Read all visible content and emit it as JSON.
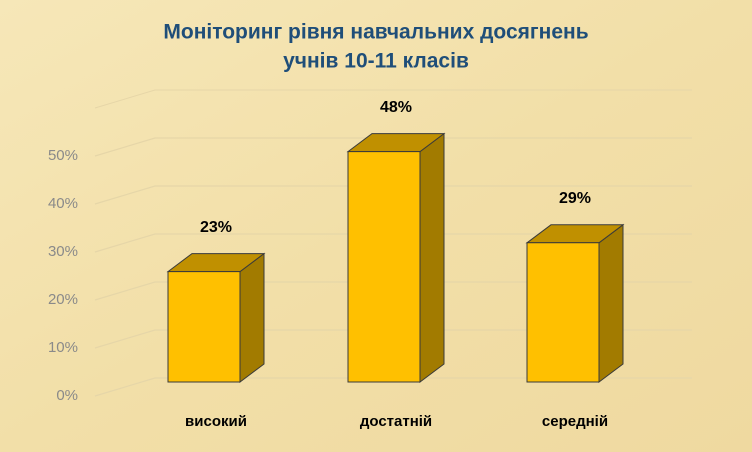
{
  "chart_data": {
    "type": "bar3d",
    "title": [
      "Моніторинг рівня  навчальних досягнень",
      "учнів 10-11 класів"
    ],
    "categories": [
      "високий",
      "достатній",
      "середній"
    ],
    "values": [
      23,
      48,
      29
    ],
    "value_labels": [
      "23%",
      "48%",
      "29%"
    ],
    "color": "#ffc000",
    "ylim": [
      0,
      60
    ],
    "yticks": [
      {
        "value": 0,
        "label": "0%"
      },
      {
        "value": 10,
        "label": "10%"
      },
      {
        "value": 20,
        "label": "20%"
      },
      {
        "value": 30,
        "label": "30%"
      },
      {
        "value": 40,
        "label": "40%"
      },
      {
        "value": 50,
        "label": "50%"
      }
    ],
    "grid": true
  }
}
